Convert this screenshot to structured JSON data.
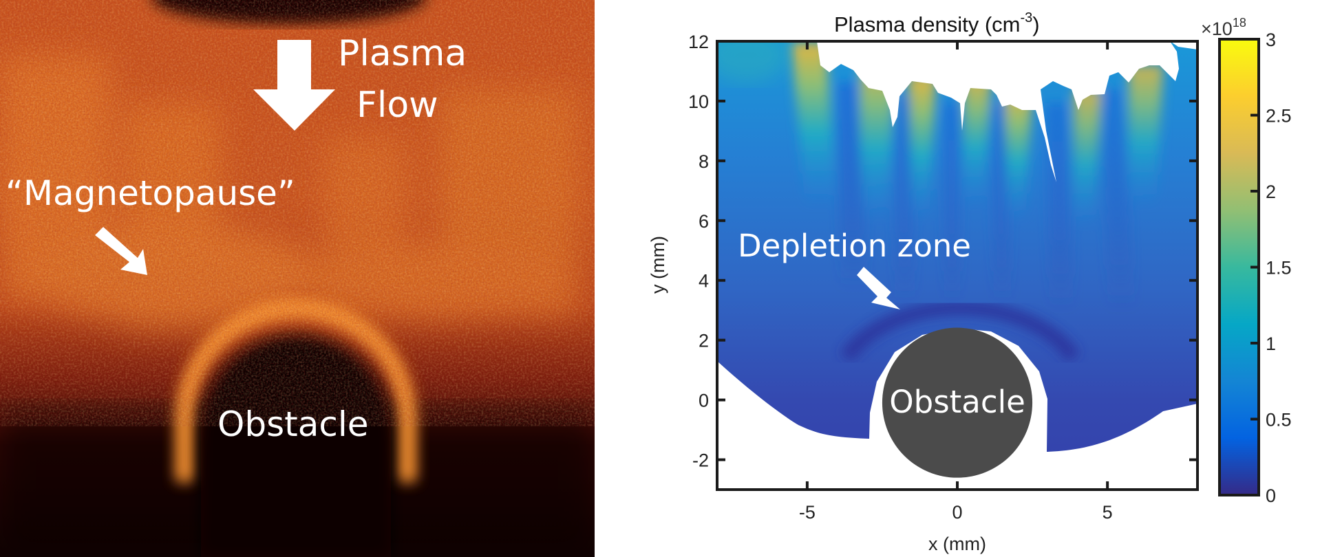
{
  "left_panel": {
    "annotations": {
      "flow_line1": "Plasma",
      "flow_line2": "Flow",
      "magnetopause": "“Magnetopause”",
      "obstacle": "Obstacle"
    },
    "colors": {
      "bright": "#f08a22",
      "mid": "#b8401a",
      "dark": "#140404"
    }
  },
  "chart_data": {
    "type": "heatmap",
    "title": "Plasma density (cm",
    "title_superscript": "-3",
    "title_suffix": ")",
    "xlabel": "x (mm)",
    "ylabel": "y (mm)",
    "xlim": [
      -8,
      8
    ],
    "ylim": [
      -3,
      12
    ],
    "xticks": [
      -5,
      0,
      5
    ],
    "xtick_labels": [
      "-5",
      "0",
      "5"
    ],
    "yticks": [
      -2,
      0,
      2,
      4,
      6,
      8,
      10,
      12
    ],
    "ytick_labels": [
      "-2",
      "0",
      "2",
      "4",
      "6",
      "8",
      "10",
      "12"
    ],
    "colorbar": {
      "range": [
        0,
        3
      ],
      "ticks": [
        0,
        0.5,
        1,
        1.5,
        2,
        2.5,
        3
      ],
      "tick_labels": [
        "0",
        "0.5",
        "1",
        "1.5",
        "2",
        "2.5",
        "3"
      ],
      "multiplier_base": "×10",
      "multiplier_exp": "18",
      "colormap": "parula"
    },
    "obstacle": {
      "center": [
        0,
        0
      ],
      "radius_mm": 2.5,
      "label": "Obstacle",
      "color": "#4b4b4b"
    },
    "annotations": {
      "depletion": "Depletion zone"
    },
    "grid": false
  }
}
